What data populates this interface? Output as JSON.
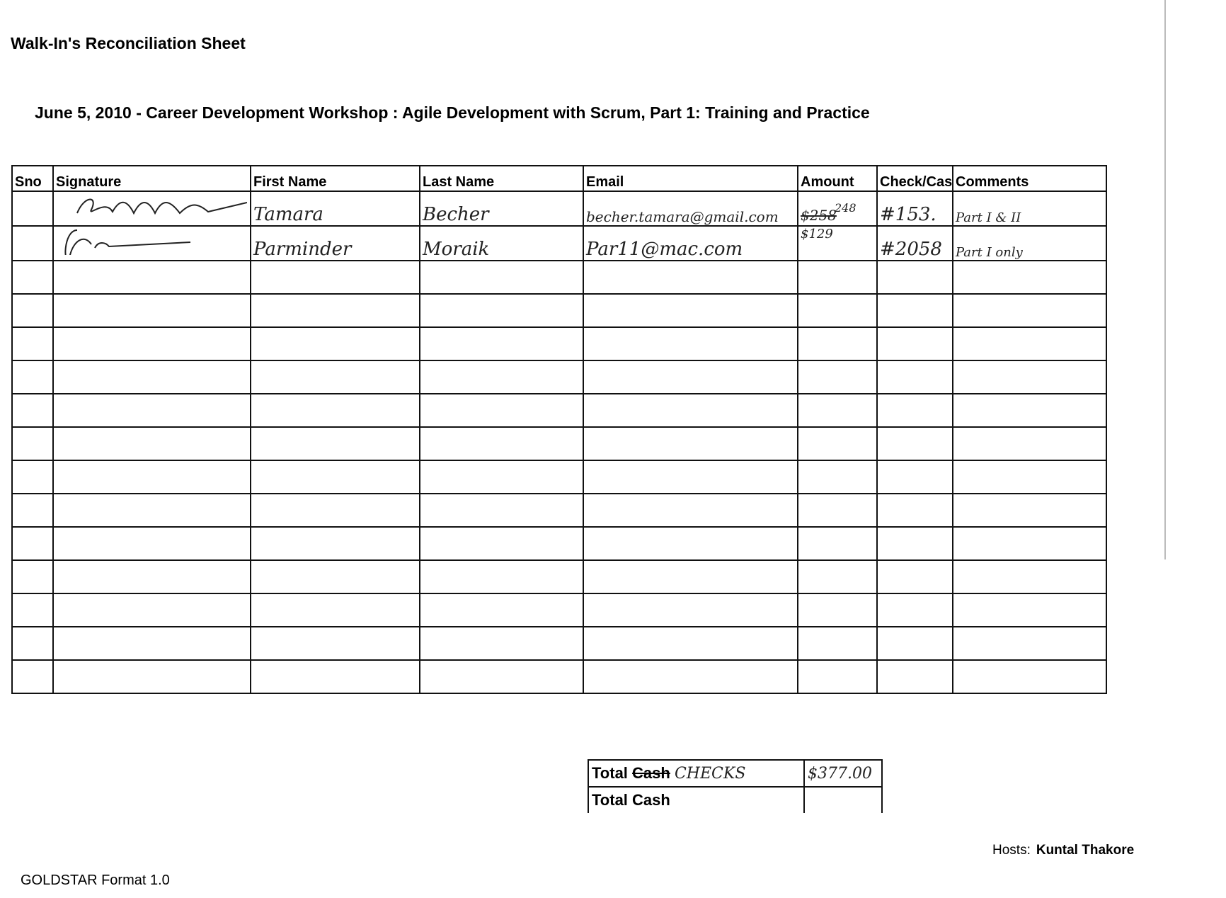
{
  "header": {
    "title": "Walk-In's Reconciliation Sheet",
    "subtitle": "June 5, 2010 - Career Development Workshop : Agile Development with Scrum, Part 1: Training and Practice"
  },
  "table": {
    "columns": [
      "Sno",
      "Signature",
      "First Name",
      "Last Name",
      "Email",
      "Amount",
      "Check/Cas",
      "Comments"
    ],
    "rows": [
      {
        "sno": "",
        "first_name": "Tamara",
        "last_name": "Becher",
        "email": "becher.tamara@gmail.com",
        "amount": "$258",
        "amount_correction": "248",
        "check": "#153.",
        "comments": "Part I & II"
      },
      {
        "sno": "",
        "first_name": "Parminder",
        "last_name": "Moraik",
        "email": "Par11@mac.com",
        "amount": "$129",
        "amount_correction": "",
        "check": "#2058",
        "comments": "Part I only"
      }
    ],
    "empty_rows": 13
  },
  "totals": {
    "row1_label": "Total",
    "row1_struck": "Cash",
    "row1_handwritten": "CHECKS",
    "row1_value": "$377.00",
    "row2_label": "Total Cash",
    "row2_value": ""
  },
  "hosts": {
    "label": "Hosts:",
    "name": "Kuntal Thakore"
  },
  "footer": {
    "format": "GOLDSTAR Format 1.0"
  }
}
